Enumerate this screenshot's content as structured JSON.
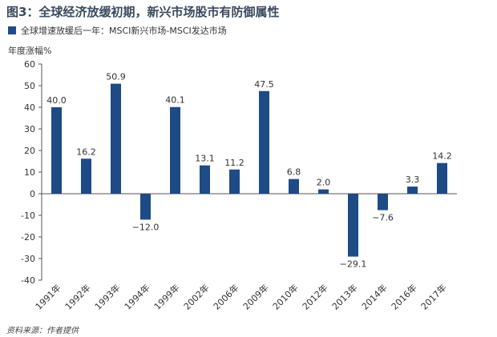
{
  "colors": {
    "bar": "#1e4a86",
    "axis": "#555555",
    "text": "#333333"
  },
  "chart_data": {
    "type": "bar",
    "title": "图3：全球经济放缓初期，新兴市场股市有防御属性",
    "legend": [
      "全球增速放缓后一年：MSCI新兴市场-MSCI发达市场"
    ],
    "ylabel": "年度涨幅%",
    "xlabel": "",
    "ylim": [
      -40,
      60
    ],
    "yticks": [
      -40,
      -30,
      -20,
      -10,
      0,
      10,
      20,
      30,
      40,
      50,
      60
    ],
    "grid": false,
    "categories": [
      "1991年",
      "1992年",
      "1993年",
      "1994年",
      "1999年",
      "2002年",
      "2006年",
      "2009年",
      "2010年",
      "2012年",
      "2013年",
      "2014年",
      "2016年",
      "2017年"
    ],
    "series": [
      {
        "name": "全球增速放缓后一年：MSCI新兴市场-MSCI发达市场",
        "values": [
          40.0,
          16.2,
          50.9,
          -12.0,
          40.1,
          13.1,
          11.2,
          47.5,
          6.8,
          2.0,
          -29.1,
          -7.6,
          3.3,
          14.2
        ],
        "labels": [
          "40.0",
          "16.2",
          "50.9",
          "−12.0",
          "40.1",
          "13.1",
          "11.2",
          "47.5",
          "6.8",
          "2.0",
          "−29.1",
          "−7.6",
          "3.3",
          "14.2"
        ]
      }
    ],
    "source": "资料来源：作者提供"
  }
}
